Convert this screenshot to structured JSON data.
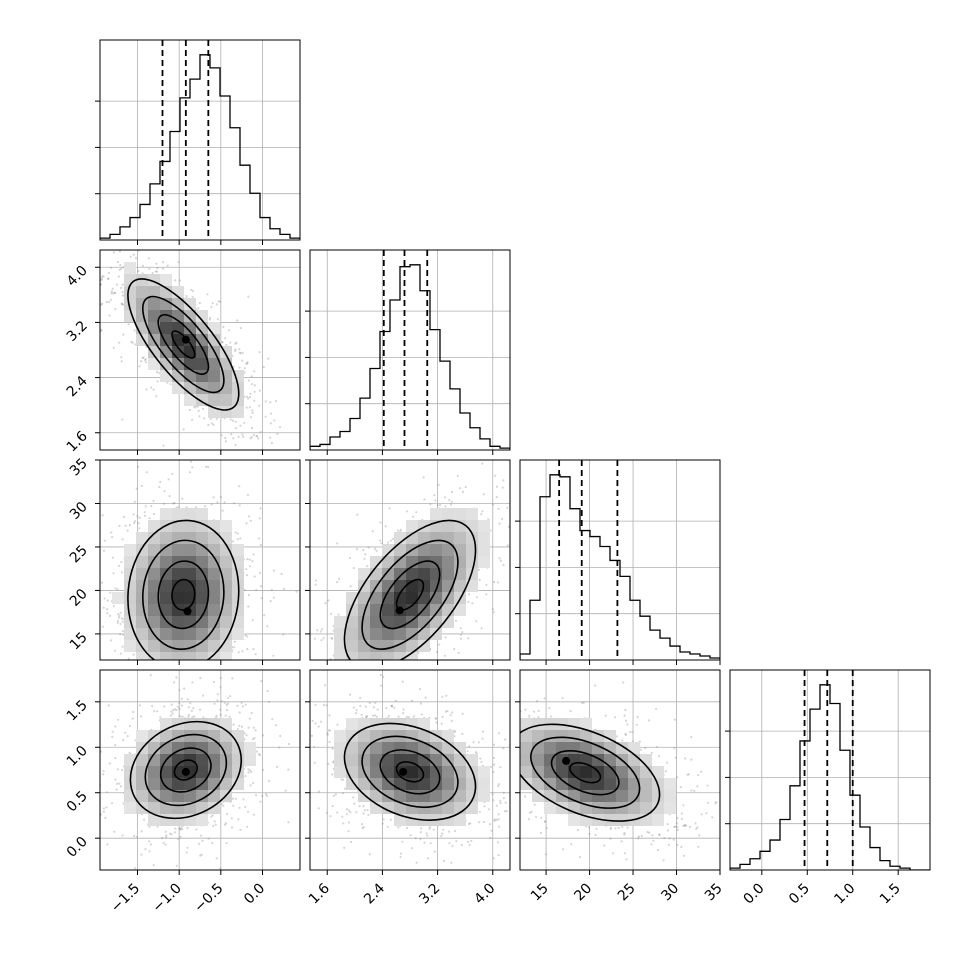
{
  "chart_data": {
    "type": "corner",
    "n_params": 4,
    "params": [
      {
        "range": [
          -1.95,
          0.45
        ],
        "ticks": [
          -1.5,
          -1.0,
          -0.5,
          0.0
        ],
        "tick_labels": [
          "−1.5",
          "−1.0",
          "−0.5",
          "0.0"
        ],
        "quantiles": [
          -1.2,
          -0.92,
          -0.65
        ],
        "hist": [
          0.01,
          0.03,
          0.07,
          0.12,
          0.19,
          0.3,
          0.42,
          0.58,
          0.76,
          0.86,
          0.99,
          0.92,
          0.77,
          0.6,
          0.4,
          0.25,
          0.12,
          0.06,
          0.03,
          0.01
        ]
      },
      {
        "range": [
          1.35,
          4.25
        ],
        "ticks": [
          1.6,
          2.4,
          3.2,
          4.0
        ],
        "tick_labels": [
          "1.6",
          "2.4",
          "3.2",
          "4.0"
        ],
        "quantiles": [
          2.42,
          2.72,
          3.05
        ],
        "hist": [
          0.02,
          0.03,
          0.07,
          0.1,
          0.17,
          0.28,
          0.44,
          0.64,
          0.81,
          0.99,
          1.0,
          0.86,
          0.65,
          0.48,
          0.33,
          0.2,
          0.12,
          0.06,
          0.02,
          0.01
        ]
      },
      {
        "range": [
          12.0,
          35.0
        ],
        "ticks": [
          15,
          20,
          25,
          30,
          35
        ],
        "tick_labels": [
          "15",
          "20",
          "25",
          "30",
          "35"
        ],
        "quantiles": [
          16.5,
          19.1,
          23.2
        ],
        "hist": [
          0.03,
          0.3,
          0.82,
          0.93,
          0.92,
          0.76,
          0.65,
          0.62,
          0.57,
          0.5,
          0.42,
          0.3,
          0.22,
          0.15,
          0.11,
          0.07,
          0.04,
          0.03,
          0.02,
          0.01
        ]
      },
      {
        "range": [
          -0.35,
          1.85
        ],
        "ticks": [
          0.0,
          0.5,
          1.0,
          1.5
        ],
        "tick_labels": [
          "0.0",
          "0.5",
          "1.0",
          "1.5"
        ],
        "quantiles": [
          0.47,
          0.72,
          1.0
        ],
        "hist": [
          0.01,
          0.03,
          0.06,
          0.1,
          0.16,
          0.27,
          0.45,
          0.69,
          0.86,
          0.99,
          0.89,
          0.64,
          0.4,
          0.23,
          0.12,
          0.05,
          0.02,
          0.01,
          0.0,
          0.0
        ]
      }
    ],
    "pairs": [
      {
        "row": 1,
        "col": 0,
        "center": [
          -0.95,
          2.88
        ],
        "spread": [
          0.35,
          0.5
        ],
        "corr": -0.75,
        "peak": [
          -0.92,
          2.95
        ]
      },
      {
        "row": 2,
        "col": 0,
        "center": [
          -0.95,
          19.5
        ],
        "spread": [
          0.35,
          4.5
        ],
        "corr": 0.05,
        "peak": [
          -0.9,
          17.6
        ]
      },
      {
        "row": 2,
        "col": 1,
        "center": [
          2.8,
          19.5
        ],
        "spread": [
          0.5,
          4.5
        ],
        "corr": 0.6,
        "peak": [
          2.65,
          17.7
        ]
      },
      {
        "row": 3,
        "col": 0,
        "center": [
          -0.92,
          0.75
        ],
        "spread": [
          0.35,
          0.28
        ],
        "corr": 0.2,
        "peak": [
          -0.92,
          0.73
        ]
      },
      {
        "row": 3,
        "col": 1,
        "center": [
          2.8,
          0.73
        ],
        "spread": [
          0.5,
          0.28
        ],
        "corr": -0.3,
        "peak": [
          2.7,
          0.73
        ]
      },
      {
        "row": 3,
        "col": 2,
        "center": [
          19.5,
          0.72
        ],
        "spread": [
          4.5,
          0.28
        ],
        "corr": -0.45,
        "peak": [
          17.3,
          0.85
        ]
      }
    ],
    "contour_levels": [
      0.39,
      0.86,
      1.39,
      1.9
    ],
    "grid": true
  }
}
